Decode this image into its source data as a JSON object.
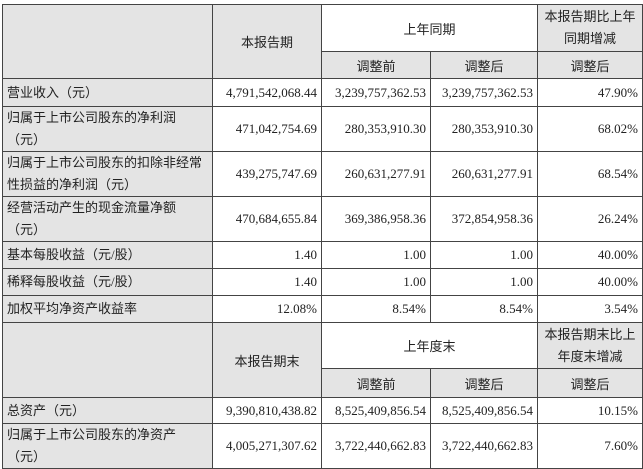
{
  "table1": {
    "header": {
      "current": "本报告期",
      "prior_group": "上年同期",
      "change": "本报告期比上年同期增减",
      "before_adj": "调整前",
      "after_adj": "调整后",
      "change_sub": "调整后"
    },
    "rows": [
      {
        "label": "营业收入（元）",
        "current": "4,791,542,068.44",
        "before": "3,239,757,362.53",
        "after": "3,239,757,362.53",
        "change": "47.90%"
      },
      {
        "label": "归属于上市公司股东的净利润（元）",
        "current": "471,042,754.69",
        "before": "280,353,910.30",
        "after": "280,353,910.30",
        "change": "68.02%"
      },
      {
        "label": "归属于上市公司股东的扣除非经常性损益的净利润（元）",
        "current": "439,275,747.69",
        "before": "260,631,277.91",
        "after": "260,631,277.91",
        "change": "68.54%"
      },
      {
        "label": "经营活动产生的现金流量净额（元）",
        "current": "470,684,655.84",
        "before": "369,386,958.36",
        "after": "372,854,958.36",
        "change": "26.24%"
      },
      {
        "label": "基本每股收益（元/股）",
        "current": "1.40",
        "before": "1.00",
        "after": "1.00",
        "change": "40.00%"
      },
      {
        "label": "稀释每股收益（元/股）",
        "current": "1.40",
        "before": "1.00",
        "after": "1.00",
        "change": "40.00%"
      },
      {
        "label": "加权平均净资产收益率",
        "current": "12.08%",
        "before": "8.54%",
        "after": "8.54%",
        "change": "3.54%"
      }
    ]
  },
  "table2": {
    "header": {
      "current": "本报告期末",
      "prior_group": "上年度末",
      "change": "本报告期末比上年度末增减",
      "before_adj": "调整前",
      "after_adj": "调整后",
      "change_sub": "调整后"
    },
    "rows": [
      {
        "label": "总资产（元）",
        "current": "9,390,810,438.82",
        "before": "8,525,409,856.54",
        "after": "8,525,409,856.54",
        "change": "10.15%"
      },
      {
        "label": "归属于上市公司股东的净资产（元）",
        "current": "4,005,271,307.62",
        "before": "3,722,440,662.83",
        "after": "3,722,440,662.83",
        "change": "7.60%"
      }
    ]
  }
}
